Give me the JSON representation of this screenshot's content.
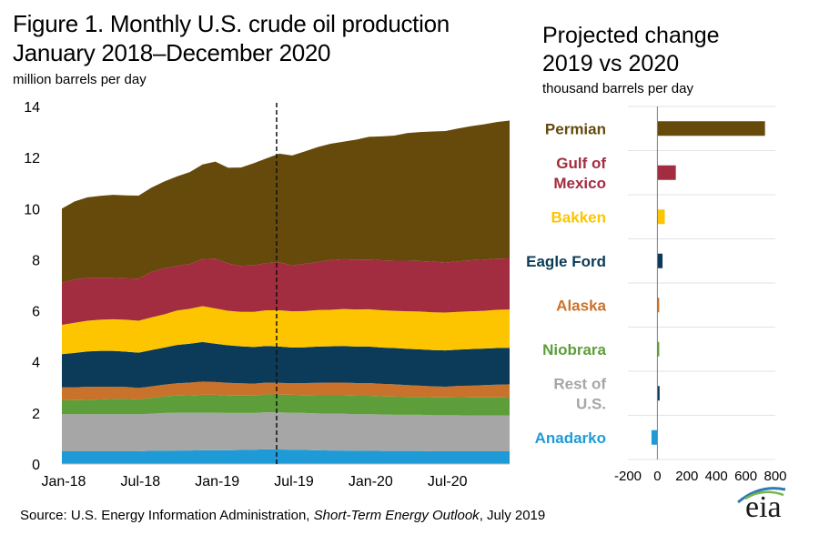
{
  "title_line1": "Figure 1. Monthly U.S. crude oil production",
  "title_line2": "January 2018–December 2020",
  "left_units": "million barrels per day",
  "right_title_line1": "Projected change",
  "right_title_line2": "2019 vs 2020",
  "right_units": "thousand barrels per day",
  "source_prefix": "Source: U.S. Energy Information Administration, ",
  "source_italic": "Short-Term Energy Outlook",
  "source_suffix": ", July 2019",
  "logo_text": "eia",
  "chart_data": [
    {
      "type": "area",
      "stacked": true,
      "title": "Figure 1. Monthly U.S. crude oil production January 2018–December 2020",
      "ylabel": "million barrels per day",
      "ylim": [
        0,
        14
      ],
      "yticks": [
        0,
        2,
        4,
        6,
        8,
        10,
        12,
        14
      ],
      "xlim": [
        "2018-01",
        "2020-12"
      ],
      "xticks": [
        "Jan-18",
        "Jul-18",
        "Jan-19",
        "Jul-19",
        "Jan-20",
        "Jul-20"
      ],
      "xtick_months": [
        0,
        6,
        12,
        18,
        24,
        30
      ],
      "forecast_divider_month": "2019-06",
      "grid": false,
      "legend": "none",
      "x": [
        "2018-01",
        "2018-02",
        "2018-03",
        "2018-04",
        "2018-05",
        "2018-06",
        "2018-07",
        "2018-08",
        "2018-09",
        "2018-10",
        "2018-11",
        "2018-12",
        "2019-01",
        "2019-02",
        "2019-03",
        "2019-04",
        "2019-05",
        "2019-06",
        "2019-07",
        "2019-08",
        "2019-09",
        "2019-10",
        "2019-11",
        "2019-12",
        "2020-01",
        "2020-02",
        "2020-03",
        "2020-04",
        "2020-05",
        "2020-06",
        "2020-07",
        "2020-08",
        "2020-09",
        "2020-10",
        "2020-11",
        "2020-12"
      ],
      "series": [
        {
          "key": "anadarko",
          "color": "#1E9BD7",
          "values": [
            0.5,
            0.5,
            0.5,
            0.5,
            0.5,
            0.5,
            0.5,
            0.52,
            0.52,
            0.53,
            0.53,
            0.54,
            0.54,
            0.54,
            0.55,
            0.56,
            0.58,
            0.57,
            0.56,
            0.55,
            0.54,
            0.53,
            0.53,
            0.52,
            0.52,
            0.51,
            0.51,
            0.51,
            0.51,
            0.5,
            0.5,
            0.5,
            0.5,
            0.5,
            0.5,
            0.5
          ]
        },
        {
          "key": "rest-of-us",
          "color": "#A6A6A6",
          "values": [
            1.45,
            1.45,
            1.45,
            1.45,
            1.45,
            1.45,
            1.45,
            1.45,
            1.48,
            1.48,
            1.48,
            1.47,
            1.47,
            1.46,
            1.45,
            1.44,
            1.45,
            1.45,
            1.45,
            1.45,
            1.44,
            1.44,
            1.44,
            1.43,
            1.43,
            1.43,
            1.42,
            1.42,
            1.42,
            1.41,
            1.41,
            1.41,
            1.4,
            1.4,
            1.4,
            1.4
          ]
        },
        {
          "key": "niobrara",
          "color": "#5D9E3A",
          "values": [
            0.55,
            0.55,
            0.56,
            0.58,
            0.6,
            0.6,
            0.58,
            0.62,
            0.65,
            0.67,
            0.68,
            0.7,
            0.7,
            0.68,
            0.68,
            0.68,
            0.7,
            0.7,
            0.7,
            0.7,
            0.71,
            0.72,
            0.72,
            0.72,
            0.72,
            0.71,
            0.71,
            0.7,
            0.7,
            0.7,
            0.7,
            0.71,
            0.71,
            0.71,
            0.71,
            0.72
          ]
        },
        {
          "key": "alaska",
          "color": "#C9722B",
          "values": [
            0.5,
            0.5,
            0.52,
            0.5,
            0.48,
            0.47,
            0.45,
            0.45,
            0.46,
            0.48,
            0.5,
            0.52,
            0.5,
            0.5,
            0.48,
            0.47,
            0.46,
            0.46,
            0.45,
            0.47,
            0.49,
            0.5,
            0.5,
            0.5,
            0.5,
            0.49,
            0.48,
            0.46,
            0.44,
            0.43,
            0.42,
            0.44,
            0.46,
            0.48,
            0.5,
            0.5
          ]
        },
        {
          "key": "eagle-ford",
          "color": "#0B3B58",
          "values": [
            1.3,
            1.35,
            1.38,
            1.4,
            1.4,
            1.38,
            1.38,
            1.42,
            1.45,
            1.5,
            1.52,
            1.55,
            1.5,
            1.47,
            1.45,
            1.43,
            1.43,
            1.42,
            1.4,
            1.4,
            1.42,
            1.42,
            1.43,
            1.43,
            1.43,
            1.42,
            1.42,
            1.42,
            1.42,
            1.42,
            1.42,
            1.42,
            1.43,
            1.43,
            1.43,
            1.43
          ]
        },
        {
          "key": "bakken",
          "color": "#FDC500",
          "values": [
            1.15,
            1.18,
            1.2,
            1.22,
            1.24,
            1.25,
            1.25,
            1.28,
            1.3,
            1.35,
            1.37,
            1.4,
            1.38,
            1.35,
            1.35,
            1.38,
            1.4,
            1.42,
            1.42,
            1.42,
            1.43,
            1.43,
            1.45,
            1.45,
            1.46,
            1.46,
            1.46,
            1.47,
            1.48,
            1.48,
            1.48,
            1.48,
            1.48,
            1.48,
            1.5,
            1.5
          ]
        },
        {
          "key": "gulf-of-mexico",
          "color": "#A22D40",
          "values": [
            1.65,
            1.7,
            1.68,
            1.65,
            1.62,
            1.62,
            1.65,
            1.78,
            1.8,
            1.75,
            1.75,
            1.85,
            1.95,
            1.85,
            1.8,
            1.82,
            1.85,
            1.88,
            1.8,
            1.85,
            1.88,
            1.95,
            1.95,
            1.95,
            1.95,
            1.96,
            1.96,
            1.98,
            1.98,
            1.98,
            1.96,
            1.98,
            2.0,
            2.0,
            2.0,
            2.0
          ]
        },
        {
          "key": "permian",
          "color": "#654A0C",
          "values": [
            2.9,
            3.05,
            3.15,
            3.2,
            3.25,
            3.25,
            3.25,
            3.3,
            3.4,
            3.5,
            3.6,
            3.7,
            3.8,
            3.75,
            3.85,
            4.0,
            4.1,
            4.25,
            4.3,
            4.4,
            4.5,
            4.55,
            4.6,
            4.7,
            4.8,
            4.85,
            4.9,
            5.0,
            5.05,
            5.1,
            5.15,
            5.2,
            5.25,
            5.3,
            5.35,
            5.4
          ]
        }
      ]
    },
    {
      "type": "bar",
      "orientation": "horizontal",
      "title": "Projected change 2019 vs 2020",
      "xlabel": "thousand barrels per day",
      "xlim": [
        -200,
        800
      ],
      "xticks": [
        -200,
        0,
        200,
        400,
        600,
        800
      ],
      "categories": [
        "Permian",
        "Gulf of Mexico",
        "Bakken",
        "Eagle Ford",
        "Alaska",
        "Niobrara",
        "Rest of U.S.",
        "Anadarko"
      ],
      "labels": [
        [
          "Permian"
        ],
        [
          "Gulf of",
          "Mexico"
        ],
        [
          "Bakken"
        ],
        [
          "Eagle Ford"
        ],
        [
          "Alaska"
        ],
        [
          "Niobrara"
        ],
        [
          "Rest of",
          "U.S."
        ],
        [
          "Anadarko"
        ]
      ],
      "values": [
        730,
        125,
        50,
        35,
        8,
        10,
        15,
        -40
      ],
      "colors": [
        "#654A0C",
        "#A22D40",
        "#FDC500",
        "#0B3B58",
        "#C9722B",
        "#5D9E3A",
        "#0B3B58",
        "#1E9BD7"
      ],
      "label_colors": [
        "#654A0C",
        "#A22D40",
        "#FDC500",
        "#0B3B58",
        "#C9722B",
        "#5D9E3A",
        "#A6A6A6",
        "#1E9BD7"
      ]
    }
  ]
}
